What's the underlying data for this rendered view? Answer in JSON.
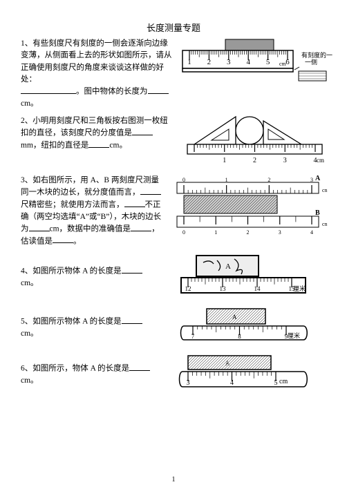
{
  "title": "长度测量专题",
  "q1": {
    "num": "1、",
    "text": "有些刻度尺有刻度的一侧会逐渐向边缘变薄，从侧面看上去的形状如图所示，请从正确使用刻度尺的角度来谈谈这样做的好处：",
    "line2a": "。图中物体的长度为",
    "line2b": "cm。",
    "label_side": "有刻度的一侧",
    "ticks": [
      "1",
      "2",
      "3",
      "4",
      "5",
      "6"
    ],
    "unit_small": "cm"
  },
  "q2": {
    "num": "2、",
    "text": "小明用刻度尺和三角板按右图测一枚纽扣的直径，该刻度尺的分度值是",
    "u1": "mm，",
    "t2": "纽扣的直径是",
    "u2": "cm。",
    "rlabels": [
      "1",
      "2",
      "3",
      "4"
    ],
    "runit": "cm"
  },
  "q3": {
    "num": "3、",
    "text1": "如右图所示，用 A、B 两刻度尺测量同一木块的边长，就分度值而言，",
    "text2": "尺精密些；就使用方法而言，",
    "text3": "不正确（两空均选填“A”或“B”），木块的边长为",
    "text4": "cm，数据中的准确值是",
    "text5": "，估读值是",
    "text6": "。",
    "labA": "A",
    "labB": "B",
    "unit": "cn",
    "top_nums": [
      "0",
      "1",
      "2",
      "3"
    ],
    "bot_nums": [
      "0",
      "1",
      "2",
      "3",
      "4"
    ]
  },
  "q4": {
    "num": "4、",
    "text": "如图所示物体 A 的长度是",
    "u": "cm。",
    "nums": [
      "12",
      "13",
      "14",
      "15"
    ],
    "unit": "厘米",
    "lab": "A"
  },
  "q5": {
    "num": "5、",
    "text": "如图所示物体 A 的长度是",
    "u": "cm。",
    "nums": [
      "7",
      "8",
      "9"
    ],
    "unit": "厘米",
    "lab": "A"
  },
  "q6": {
    "num": "6、",
    "text": "如图所示，物体 A 的长度是",
    "u": "cm。",
    "nums": [
      "3",
      "4",
      "5"
    ],
    "unit": "cm",
    "lab": "A"
  },
  "page_number": "1"
}
